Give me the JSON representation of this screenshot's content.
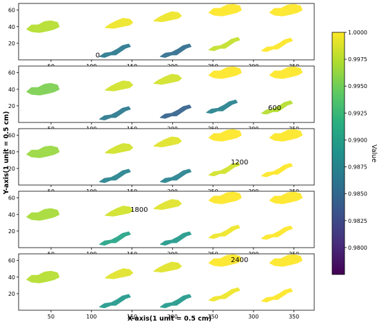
{
  "chart_data": {
    "type": "heatmap",
    "xlabel": "X-axis(1 unit = 0.5 cm)",
    "ylabel": "Y-axis(1 unit = 0.5 cm)",
    "xlim": [
      10,
      375
    ],
    "ylim": [
      0,
      68
    ],
    "xticks": [
      50,
      100,
      150,
      200,
      250,
      300,
      350
    ],
    "yticks": [
      20,
      40,
      60
    ],
    "colormap": "viridis",
    "colorbar": {
      "label": "Value",
      "min": 0.9775,
      "max": 1.0,
      "ticks": [
        "1.0000",
        "0.9975",
        "0.9950",
        "0.9925",
        "0.9900",
        "0.9875",
        "0.9850",
        "0.9825",
        "0.9800"
      ],
      "tick_values": [
        1.0,
        0.9975,
        0.995,
        0.9925,
        0.99,
        0.9875,
        0.985,
        0.9825,
        0.98
      ]
    },
    "panels": [
      {
        "annotation": "0",
        "annotation_xy": [
          105,
          3
        ],
        "blobs": [
          {
            "x": 40,
            "y": 40,
            "value": 0.9975
          },
          {
            "x": 135,
            "y": 45,
            "value": 0.9995
          },
          {
            "x": 130,
            "y": 10,
            "value": 0.9865
          },
          {
            "x": 195,
            "y": 53,
            "value": 0.9995
          },
          {
            "x": 205,
            "y": 10,
            "value": 0.9855
          },
          {
            "x": 265,
            "y": 60,
            "value": 1.0
          },
          {
            "x": 265,
            "y": 18,
            "value": 0.998
          },
          {
            "x": 340,
            "y": 60,
            "value": 1.0
          },
          {
            "x": 330,
            "y": 17,
            "value": 1.0
          }
        ]
      },
      {
        "annotation": "600",
        "annotation_xy": [
          318,
          15
        ],
        "blobs": [
          {
            "x": 40,
            "y": 40,
            "value": 0.9955
          },
          {
            "x": 135,
            "y": 45,
            "value": 0.9985
          },
          {
            "x": 130,
            "y": 10,
            "value": 0.9865
          },
          {
            "x": 195,
            "y": 53,
            "value": 0.9985
          },
          {
            "x": 205,
            "y": 12,
            "value": 0.9845
          },
          {
            "x": 265,
            "y": 60,
            "value": 1.0
          },
          {
            "x": 262,
            "y": 18,
            "value": 0.9875
          },
          {
            "x": 340,
            "y": 60,
            "value": 1.0
          },
          {
            "x": 330,
            "y": 17,
            "value": 0.9975
          }
        ]
      },
      {
        "annotation": "1200",
        "annotation_xy": [
          272,
          25
        ],
        "blobs": [
          {
            "x": 40,
            "y": 40,
            "value": 0.9965
          },
          {
            "x": 135,
            "y": 45,
            "value": 0.9985
          },
          {
            "x": 130,
            "y": 10,
            "value": 0.9875
          },
          {
            "x": 195,
            "y": 53,
            "value": 0.999
          },
          {
            "x": 205,
            "y": 10,
            "value": 0.9875
          },
          {
            "x": 265,
            "y": 60,
            "value": 1.0
          },
          {
            "x": 265,
            "y": 18,
            "value": 0.9985
          },
          {
            "x": 340,
            "y": 60,
            "value": 1.0
          },
          {
            "x": 330,
            "y": 17,
            "value": 1.0
          }
        ]
      },
      {
        "annotation": "1800",
        "annotation_xy": [
          148,
          43
        ],
        "blobs": [
          {
            "x": 40,
            "y": 40,
            "value": 0.997
          },
          {
            "x": 135,
            "y": 45,
            "value": 0.9985
          },
          {
            "x": 130,
            "y": 10,
            "value": 0.9905
          },
          {
            "x": 195,
            "y": 53,
            "value": 0.999
          },
          {
            "x": 205,
            "y": 10,
            "value": 0.9895
          },
          {
            "x": 265,
            "y": 60,
            "value": 1.0
          },
          {
            "x": 265,
            "y": 18,
            "value": 0.9995
          },
          {
            "x": 340,
            "y": 60,
            "value": 1.0
          },
          {
            "x": 330,
            "y": 17,
            "value": 1.0
          }
        ]
      },
      {
        "annotation": "2400",
        "annotation_xy": [
          272,
          58
        ],
        "blobs": [
          {
            "x": 40,
            "y": 40,
            "value": 0.9975
          },
          {
            "x": 135,
            "y": 45,
            "value": 0.999
          },
          {
            "x": 130,
            "y": 10,
            "value": 0.9895
          },
          {
            "x": 195,
            "y": 53,
            "value": 0.999
          },
          {
            "x": 205,
            "y": 10,
            "value": 0.9895
          },
          {
            "x": 265,
            "y": 60,
            "value": 1.0
          },
          {
            "x": 265,
            "y": 18,
            "value": 0.9995
          },
          {
            "x": 340,
            "y": 60,
            "value": 1.0
          },
          {
            "x": 330,
            "y": 17,
            "value": 1.0
          }
        ]
      }
    ]
  }
}
